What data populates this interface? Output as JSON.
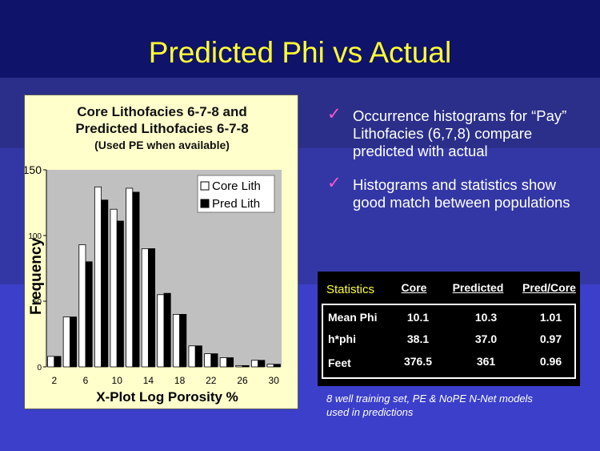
{
  "slide": {
    "title": "Predicted Phi vs Actual",
    "bullets": [
      "Occurrence histograms for “Pay” Lithofacies (6,7,8) compare predicted with actual",
      "Histograms and statistics show good match between populations"
    ],
    "footnote": "8 well training set, PE & NoPE N-Net models used in predictions"
  },
  "stats": {
    "label": "Statistics",
    "columns": [
      "Core",
      "Predicted",
      "Pred/Core"
    ],
    "rows": [
      {
        "label": "Mean Phi",
        "values": [
          "10.1",
          "10.3",
          "1.01"
        ]
      },
      {
        "label": "h*phi",
        "values": [
          "38.1",
          "37.0",
          "0.97"
        ]
      },
      {
        "label": "Feet",
        "values": [
          "376.5",
          "361",
          "0.96"
        ]
      }
    ]
  },
  "colors": {
    "title": "#ffff33",
    "stats_label": "#ffff33",
    "check": "#ff55cc",
    "plot_bg": "#c0c0c0",
    "panel_bg": "#ffffcc",
    "series_core": "#ffffff",
    "series_pred": "#000000"
  },
  "chart_data": {
    "type": "bar",
    "title_lines": [
      "Core Lithofacies 6-7-8 and",
      "Predicted Lithofacies 6-7-8"
    ],
    "subtitle": "(Used PE when available)",
    "xlabel": "X-Plot Log Porosity %",
    "ylabel": "Frequency",
    "categories": [
      "2",
      "4",
      "6",
      "8",
      "10",
      "12",
      "14",
      "16",
      "18",
      "20",
      "22",
      "24",
      "26",
      "28",
      "30"
    ],
    "x_tick_labels": [
      "2",
      "6",
      "10",
      "14",
      "18",
      "22",
      "26",
      "30"
    ],
    "y_ticks": [
      0,
      50,
      100,
      150
    ],
    "ylim": [
      0,
      150
    ],
    "grid": false,
    "legend_position": "top-right",
    "series": [
      {
        "name": "Core Lith",
        "values": [
          8,
          38,
          93,
          137,
          120,
          136,
          90,
          55,
          40,
          16,
          10,
          7,
          1,
          5,
          2
        ]
      },
      {
        "name": "Pred Lith",
        "values": [
          8,
          38,
          80,
          127,
          111,
          133,
          90,
          56,
          40,
          16,
          10,
          7,
          1,
          5,
          2
        ]
      }
    ]
  }
}
